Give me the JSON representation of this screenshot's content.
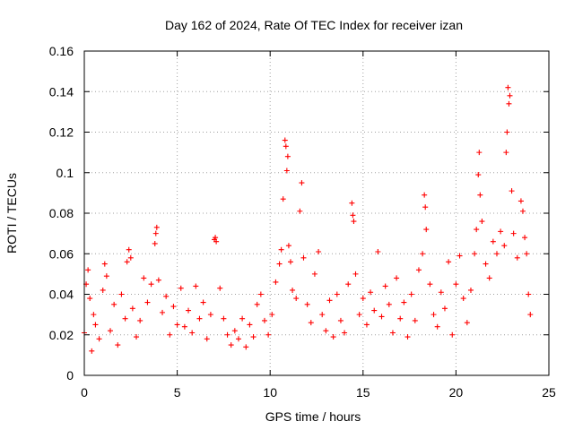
{
  "chart_data": {
    "type": "scatter",
    "title": "Day 162 of 2024, Rate Of TEC Index for receiver izan",
    "xlabel": "GPS time / hours",
    "ylabel": "ROTI / TECUs",
    "xlim": [
      0,
      25
    ],
    "ylim": [
      0,
      0.16
    ],
    "x_ticks": [
      0,
      5,
      10,
      15,
      20,
      25
    ],
    "x_tick_labels": [
      "0",
      "5",
      "10",
      "15",
      "20",
      "25"
    ],
    "y_ticks": [
      0,
      0.02,
      0.04,
      0.06,
      0.08,
      0.1,
      0.12,
      0.14,
      0.16
    ],
    "y_tick_labels": [
      "0",
      "0.02",
      "0.04",
      "0.06",
      "0.08",
      "0.1",
      "0.12",
      "0.14",
      "0.16"
    ],
    "grid": true,
    "marker": "+",
    "marker_color": "#ff0000",
    "series": [
      {
        "name": "ROTI",
        "points": [
          [
            0.0,
            0.021
          ],
          [
            0.1,
            0.045
          ],
          [
            0.2,
            0.052
          ],
          [
            0.3,
            0.038
          ],
          [
            0.4,
            0.012
          ],
          [
            0.5,
            0.03
          ],
          [
            0.6,
            0.025
          ],
          [
            0.8,
            0.018
          ],
          [
            1.0,
            0.042
          ],
          [
            1.1,
            0.055
          ],
          [
            1.2,
            0.049
          ],
          [
            1.4,
            0.022
          ],
          [
            1.6,
            0.035
          ],
          [
            1.8,
            0.015
          ],
          [
            2.0,
            0.04
          ],
          [
            2.2,
            0.028
          ],
          [
            2.3,
            0.056
          ],
          [
            2.4,
            0.062
          ],
          [
            2.5,
            0.058
          ],
          [
            2.6,
            0.033
          ],
          [
            2.8,
            0.019
          ],
          [
            3.0,
            0.027
          ],
          [
            3.2,
            0.048
          ],
          [
            3.4,
            0.036
          ],
          [
            3.6,
            0.045
          ],
          [
            3.8,
            0.065
          ],
          [
            3.85,
            0.07
          ],
          [
            3.9,
            0.073
          ],
          [
            4.0,
            0.047
          ],
          [
            4.2,
            0.031
          ],
          [
            4.4,
            0.039
          ],
          [
            4.6,
            0.02
          ],
          [
            4.8,
            0.034
          ],
          [
            5.0,
            0.025
          ],
          [
            5.2,
            0.043
          ],
          [
            5.4,
            0.024
          ],
          [
            5.6,
            0.032
          ],
          [
            5.8,
            0.021
          ],
          [
            6.0,
            0.044
          ],
          [
            6.2,
            0.028
          ],
          [
            6.4,
            0.036
          ],
          [
            6.6,
            0.018
          ],
          [
            6.8,
            0.03
          ],
          [
            7.0,
            0.067
          ],
          [
            7.05,
            0.068
          ],
          [
            7.1,
            0.066
          ],
          [
            7.3,
            0.043
          ],
          [
            7.5,
            0.028
          ],
          [
            7.7,
            0.02
          ],
          [
            7.9,
            0.015
          ],
          [
            8.1,
            0.022
          ],
          [
            8.3,
            0.018
          ],
          [
            8.5,
            0.028
          ],
          [
            8.7,
            0.014
          ],
          [
            8.9,
            0.025
          ],
          [
            9.1,
            0.019
          ],
          [
            9.3,
            0.035
          ],
          [
            9.5,
            0.04
          ],
          [
            9.7,
            0.027
          ],
          [
            9.9,
            0.02
          ],
          [
            10.1,
            0.03
          ],
          [
            10.3,
            0.046
          ],
          [
            10.5,
            0.055
          ],
          [
            10.6,
            0.062
          ],
          [
            10.7,
            0.087
          ],
          [
            10.8,
            0.116
          ],
          [
            10.85,
            0.113
          ],
          [
            10.9,
            0.101
          ],
          [
            10.95,
            0.108
          ],
          [
            11.0,
            0.064
          ],
          [
            11.1,
            0.056
          ],
          [
            11.2,
            0.042
          ],
          [
            11.4,
            0.038
          ],
          [
            11.6,
            0.081
          ],
          [
            11.7,
            0.095
          ],
          [
            11.8,
            0.058
          ],
          [
            12.0,
            0.035
          ],
          [
            12.2,
            0.026
          ],
          [
            12.4,
            0.05
          ],
          [
            12.6,
            0.061
          ],
          [
            12.8,
            0.03
          ],
          [
            13.0,
            0.022
          ],
          [
            13.2,
            0.037
          ],
          [
            13.4,
            0.019
          ],
          [
            13.6,
            0.04
          ],
          [
            13.8,
            0.027
          ],
          [
            14.0,
            0.021
          ],
          [
            14.2,
            0.045
          ],
          [
            14.4,
            0.085
          ],
          [
            14.45,
            0.079
          ],
          [
            14.5,
            0.076
          ],
          [
            14.6,
            0.05
          ],
          [
            14.8,
            0.03
          ],
          [
            15.0,
            0.038
          ],
          [
            15.2,
            0.025
          ],
          [
            15.4,
            0.041
          ],
          [
            15.6,
            0.032
          ],
          [
            15.8,
            0.061
          ],
          [
            16.0,
            0.029
          ],
          [
            16.2,
            0.044
          ],
          [
            16.4,
            0.035
          ],
          [
            16.6,
            0.021
          ],
          [
            16.8,
            0.048
          ],
          [
            17.0,
            0.028
          ],
          [
            17.2,
            0.036
          ],
          [
            17.4,
            0.019
          ],
          [
            17.6,
            0.04
          ],
          [
            17.8,
            0.027
          ],
          [
            18.0,
            0.052
          ],
          [
            18.2,
            0.06
          ],
          [
            18.3,
            0.089
          ],
          [
            18.35,
            0.083
          ],
          [
            18.4,
            0.072
          ],
          [
            18.6,
            0.045
          ],
          [
            18.8,
            0.03
          ],
          [
            19.0,
            0.024
          ],
          [
            19.2,
            0.041
          ],
          [
            19.4,
            0.033
          ],
          [
            19.6,
            0.056
          ],
          [
            19.8,
            0.02
          ],
          [
            20.0,
            0.045
          ],
          [
            20.2,
            0.059
          ],
          [
            20.4,
            0.038
          ],
          [
            20.6,
            0.026
          ],
          [
            20.8,
            0.042
          ],
          [
            21.0,
            0.06
          ],
          [
            21.1,
            0.072
          ],
          [
            21.2,
            0.099
          ],
          [
            21.25,
            0.11
          ],
          [
            21.3,
            0.089
          ],
          [
            21.4,
            0.076
          ],
          [
            21.6,
            0.055
          ],
          [
            21.8,
            0.048
          ],
          [
            22.0,
            0.066
          ],
          [
            22.2,
            0.06
          ],
          [
            22.4,
            0.071
          ],
          [
            22.6,
            0.064
          ],
          [
            22.7,
            0.11
          ],
          [
            22.75,
            0.12
          ],
          [
            22.8,
            0.142
          ],
          [
            22.85,
            0.134
          ],
          [
            22.9,
            0.138
          ],
          [
            23.0,
            0.091
          ],
          [
            23.1,
            0.07
          ],
          [
            23.3,
            0.058
          ],
          [
            23.5,
            0.086
          ],
          [
            23.6,
            0.081
          ],
          [
            23.7,
            0.068
          ],
          [
            23.8,
            0.06
          ],
          [
            23.9,
            0.04
          ],
          [
            24.0,
            0.03
          ]
        ]
      }
    ]
  }
}
